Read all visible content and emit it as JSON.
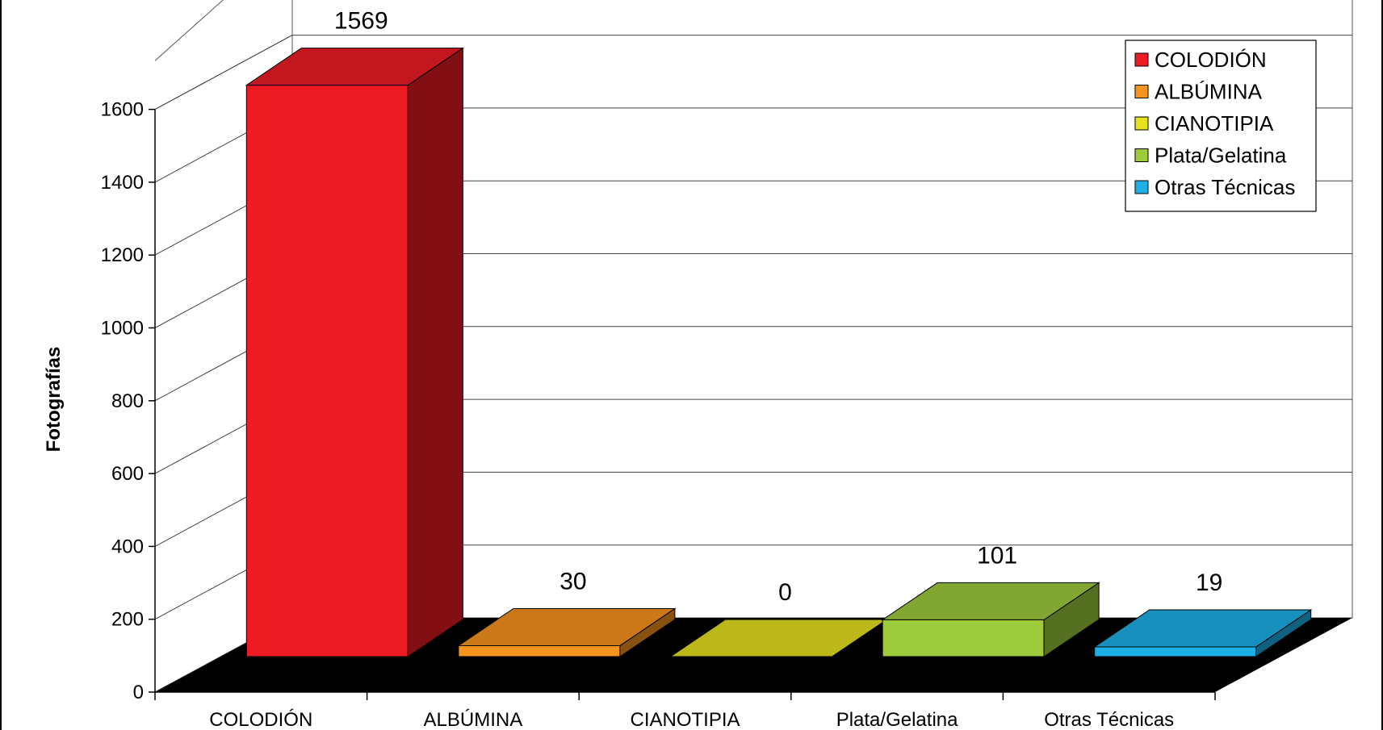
{
  "chart_data": {
    "type": "bar",
    "categories": [
      "COLODIÓN",
      "ALBÚMINA",
      "CIANOTIPIA",
      "Plata/Gelatina",
      "Otras Técnicas"
    ],
    "values": [
      1569,
      30,
      0,
      101,
      19
    ],
    "colors": [
      "#ED1C24",
      "#F7941D",
      "#E6E01E",
      "#9DCB3C",
      "#1CB0E6"
    ],
    "ylabel": "Fotografías",
    "ylim": [
      0,
      1600
    ],
    "yticks": [
      0,
      200,
      400,
      600,
      800,
      1000,
      1200,
      1400,
      1600
    ],
    "grid": true,
    "legend": {
      "position": "top-right",
      "entries": [
        "COLODIÓN",
        "ALBÚMINA",
        "CIANOTIPIA",
        "Plata/Gelatina",
        "Otras Técnicas"
      ]
    },
    "style": "3d-column",
    "floor_color": "#000000"
  }
}
